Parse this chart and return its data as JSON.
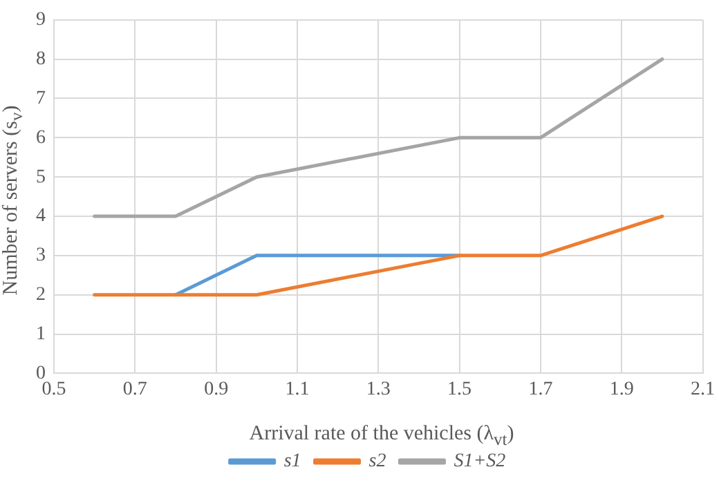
{
  "chart_data": {
    "type": "line",
    "xlabel": "Arrival rate of the vehicles (λ$_{vt}$)",
    "ylabel": "Number of servers (s$_{v}$)",
    "x": [
      0.6,
      0.8,
      1.0,
      1.5,
      1.7,
      2.0
    ],
    "series": [
      {
        "name": "s1",
        "color": "#5b9bd5",
        "values": [
          null,
          2,
          3,
          3,
          null,
          null
        ]
      },
      {
        "name": "s2",
        "color": "#ed7d31",
        "values": [
          2,
          2,
          2,
          3,
          3,
          4
        ]
      },
      {
        "name": "S1+S2",
        "color": "#a5a5a5",
        "values": [
          4,
          4,
          5,
          6,
          6,
          8
        ]
      }
    ],
    "xlim": [
      0.5,
      2.1
    ],
    "xticks": [
      0.5,
      0.7,
      0.9,
      1.1,
      1.3,
      1.5,
      1.7,
      1.9,
      2.1
    ],
    "ylim": [
      0,
      9
    ],
    "yticks": [
      0,
      1,
      2,
      3,
      4,
      5,
      6,
      7,
      8,
      9
    ],
    "grid": true,
    "legend": "bottom",
    "marker": "none",
    "line_style": "solid"
  }
}
